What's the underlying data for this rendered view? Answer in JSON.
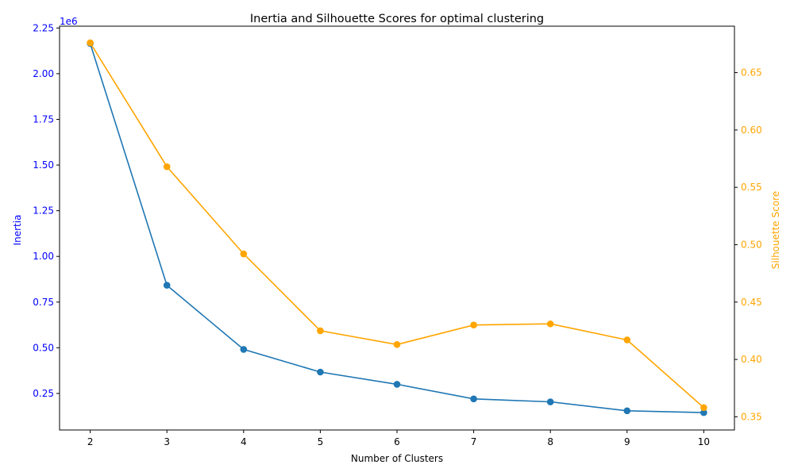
{
  "chart_data": {
    "type": "line",
    "title": "Inertia and Silhouette Scores for optimal clustering",
    "xlabel": "Number of Clusters",
    "x": [
      2,
      3,
      4,
      5,
      6,
      7,
      8,
      9,
      10
    ],
    "xlim": [
      1.6,
      10.4
    ],
    "x_ticks": [
      "2",
      "3",
      "4",
      "5",
      "6",
      "7",
      "8",
      "9",
      "10"
    ],
    "left_axis": {
      "label": "Inertia",
      "color": "#0000ff",
      "offset_text": "1e6",
      "ylim": [
        0.05,
        2.26
      ],
      "ticks": [
        0.25,
        0.5,
        0.75,
        1.0,
        1.25,
        1.5,
        1.75,
        2.0,
        2.25
      ],
      "tick_labels": [
        "0.25",
        "0.50",
        "0.75",
        "1.00",
        "1.25",
        "1.50",
        "1.75",
        "2.00",
        "2.25"
      ]
    },
    "right_axis": {
      "label": "Silhouette Score",
      "color": "#ffa500",
      "ylim": [
        0.3385,
        0.6905
      ],
      "ticks": [
        0.35,
        0.4,
        0.45,
        0.5,
        0.55,
        0.6,
        0.65
      ],
      "tick_labels": [
        "0.35",
        "0.40",
        "0.45",
        "0.50",
        "0.55",
        "0.60",
        "0.65"
      ]
    },
    "series": [
      {
        "axis": "left",
        "color": "#1f77b4",
        "values": [
          2.165,
          0.842,
          0.491,
          0.367,
          0.3,
          0.22,
          0.204,
          0.155,
          0.145
        ]
      },
      {
        "axis": "right",
        "color": "#ffa500",
        "values": [
          0.676,
          0.568,
          0.492,
          0.425,
          0.413,
          0.43,
          0.431,
          0.417,
          0.358
        ]
      }
    ],
    "grid": false,
    "legend": "none"
  }
}
